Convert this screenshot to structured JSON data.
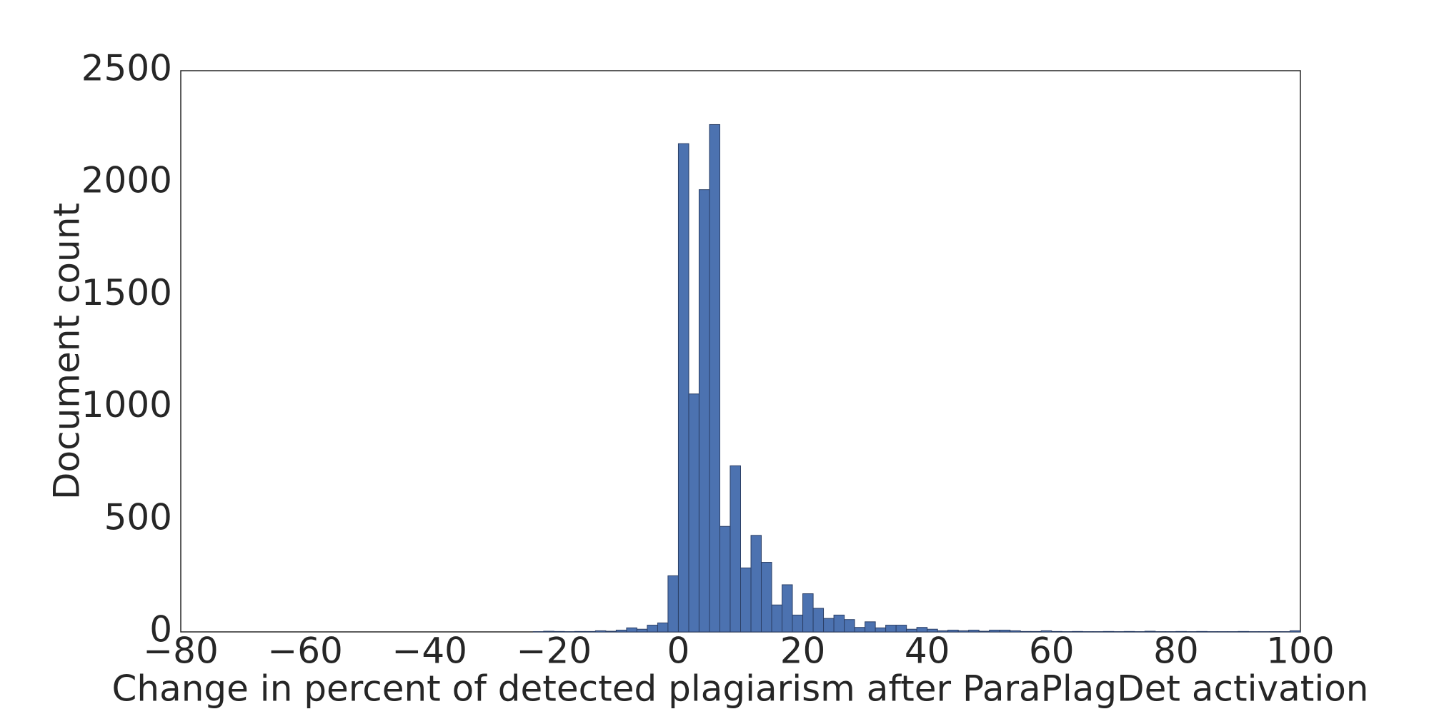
{
  "chart_data": {
    "type": "histogram",
    "xlabel": "Change in percent of detected plagiarism after ParaPlagDet activation",
    "ylabel": "Document count",
    "color": "#4c72b0",
    "edgecolor": "#2b3f66",
    "bins": [
      -25,
      -23.33,
      -21.67,
      -20,
      -18.33,
      -16.67,
      -15,
      -13.33,
      -11.67,
      -10,
      -8.33,
      -6.67,
      -5,
      -3.33,
      -1.67,
      0,
      1.67,
      3.33,
      5,
      6.67,
      8.33,
      10,
      11.67,
      13.33,
      15,
      16.67,
      18.33,
      20,
      21.67,
      23.33,
      25,
      26.67,
      28.33,
      30,
      31.67,
      33.33,
      35,
      36.67,
      38.33,
      40,
      41.67,
      43.33,
      45,
      46.67,
      48.33,
      50,
      51.67,
      53.33,
      55,
      56.67,
      58.33,
      60,
      61.67,
      63.33,
      65,
      66.67,
      68.33,
      70,
      71.67,
      73.33,
      75,
      76.67,
      78.33,
      80,
      81.67,
      83.33,
      85,
      86.67,
      88.33,
      90,
      91.67,
      93.33,
      95,
      96.67,
      98.33,
      100
    ],
    "values": [
      0,
      1,
      3,
      2,
      1,
      2,
      2,
      5,
      3,
      8,
      18,
      12,
      30,
      40,
      250,
      2175,
      1060,
      1970,
      2260,
      470,
      740,
      285,
      430,
      310,
      120,
      210,
      75,
      170,
      105,
      60,
      75,
      55,
      20,
      45,
      18,
      30,
      30,
      12,
      20,
      12,
      5,
      8,
      5,
      8,
      3,
      8,
      8,
      5,
      2,
      2,
      5,
      2,
      1,
      2,
      1,
      1,
      2,
      1,
      2,
      1,
      3,
      1,
      1,
      2,
      1,
      2,
      1,
      1,
      1,
      2,
      1,
      1,
      1,
      1,
      5
    ],
    "xlim": [
      -80,
      100
    ],
    "xticks": [
      {
        "value": -80,
        "label": "−80"
      },
      {
        "value": -60,
        "label": "−60"
      },
      {
        "value": -40,
        "label": "−40"
      },
      {
        "value": -20,
        "label": "−20"
      },
      0,
      20,
      40,
      60,
      80,
      100
    ],
    "ylim": [
      0,
      2500
    ],
    "yticks": [
      0,
      500,
      1000,
      1500,
      2000,
      2500
    ],
    "grid": false
  }
}
